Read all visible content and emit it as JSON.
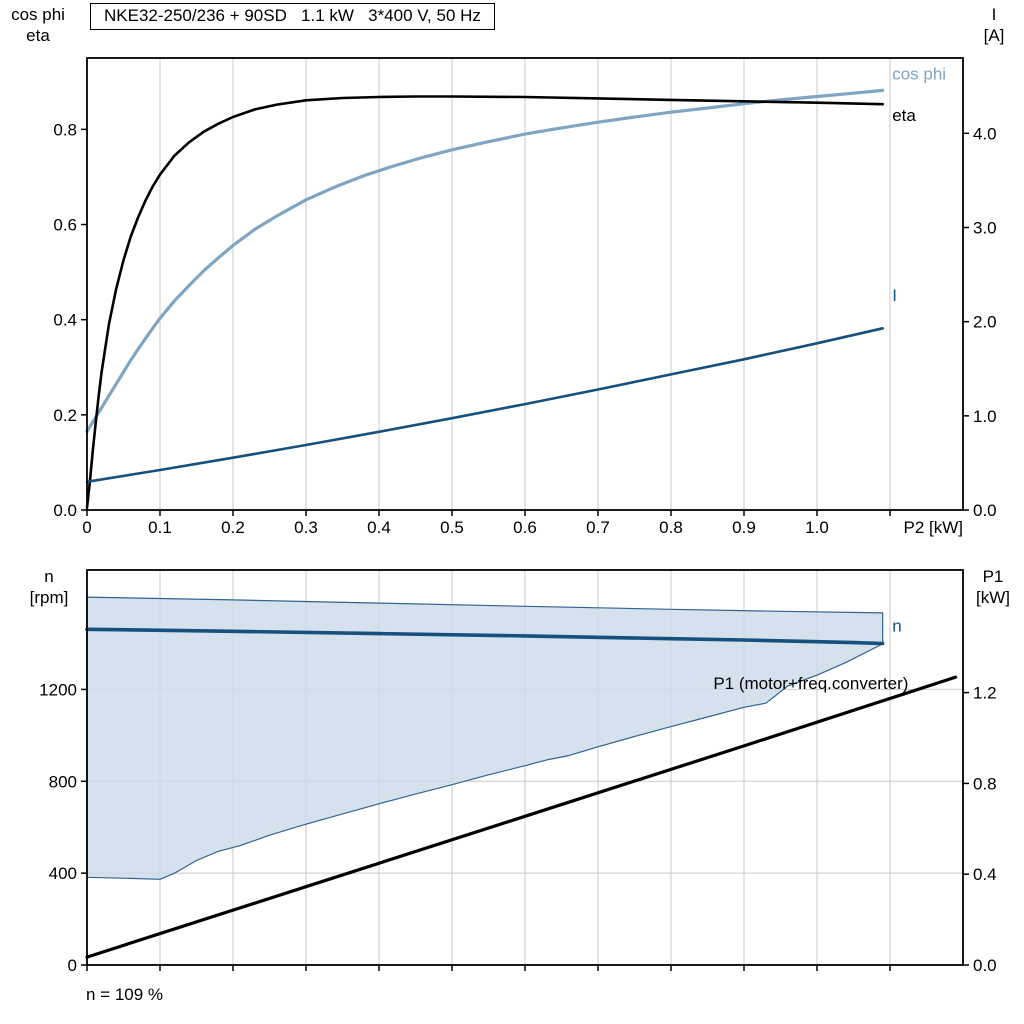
{
  "title_box": {
    "text": "NKE32-250/236 + 90SD   1.1 kW   3*400 V, 50 Hz"
  },
  "footer_note": "n = 109 %",
  "colors": {
    "cosphi": "#7FA5C3",
    "eta": "#000000",
    "blue": "#17507D",
    "p1": "#000000",
    "band_fill": "#CBDAE8",
    "band_stroke": "#33638F",
    "grid": "#C9C9C9",
    "axis": "#000000",
    "text": "#000000"
  },
  "chart_data": [
    {
      "id": "motor-curves",
      "type": "line",
      "title": "NKE32-250/236 + 90SD   1.1 kW   3*400 V, 50 Hz",
      "x_axis": {
        "label": "P2 [kW]",
        "min": 0,
        "max": 1.2,
        "grid": true,
        "ticks": [
          0,
          0.1,
          0.2,
          0.3,
          0.4,
          0.5,
          0.6,
          0.7,
          0.8,
          0.9,
          1.0,
          1.1
        ],
        "tick_labels": [
          "0",
          "0.1",
          "0.2",
          "0.3",
          "0.4",
          "0.5",
          "0.6",
          "0.7",
          "0.8",
          "0.9",
          "1.0",
          ""
        ]
      },
      "y_left": {
        "label_lines": [
          "cos phi",
          "eta"
        ],
        "min": 0,
        "max": 0.95,
        "grid": false,
        "ticks": [
          0,
          0.2,
          0.4,
          0.6,
          0.8
        ],
        "tick_labels": [
          "0.0",
          "0.2",
          "0.4",
          "0.6",
          "0.8"
        ]
      },
      "y_right": {
        "label_lines": [
          "I",
          "[A]"
        ],
        "min": 0,
        "max": 4.8,
        "ticks": [
          0,
          1,
          2,
          3,
          4
        ],
        "tick_labels": [
          "0.0",
          "1.0",
          "2.0",
          "3.0",
          "4.0"
        ]
      },
      "series": [
        {
          "id": "cos-phi",
          "name": "cos phi",
          "axis": "left",
          "color_key": "cosphi",
          "width": 3.2,
          "points": [
            [
              0,
              0.165
            ],
            [
              0.01,
              0.19
            ],
            [
              0.02,
              0.215
            ],
            [
              0.03,
              0.24
            ],
            [
              0.04,
              0.265
            ],
            [
              0.05,
              0.29
            ],
            [
              0.06,
              0.315
            ],
            [
              0.07,
              0.338
            ],
            [
              0.08,
              0.36
            ],
            [
              0.09,
              0.382
            ],
            [
              0.1,
              0.403
            ],
            [
              0.12,
              0.44
            ],
            [
              0.14,
              0.472
            ],
            [
              0.16,
              0.503
            ],
            [
              0.18,
              0.53
            ],
            [
              0.2,
              0.556
            ],
            [
              0.23,
              0.59
            ],
            [
              0.26,
              0.618
            ],
            [
              0.3,
              0.652
            ],
            [
              0.34,
              0.679
            ],
            [
              0.38,
              0.703
            ],
            [
              0.42,
              0.723
            ],
            [
              0.46,
              0.741
            ],
            [
              0.5,
              0.757
            ],
            [
              0.55,
              0.774
            ],
            [
              0.6,
              0.79
            ],
            [
              0.65,
              0.803
            ],
            [
              0.7,
              0.815
            ],
            [
              0.75,
              0.826
            ],
            [
              0.8,
              0.836
            ],
            [
              0.85,
              0.845
            ],
            [
              0.9,
              0.854
            ],
            [
              0.95,
              0.862
            ],
            [
              1.0,
              0.869
            ],
            [
              1.05,
              0.876
            ],
            [
              1.09,
              0.882
            ]
          ]
        },
        {
          "id": "eta",
          "name": "eta",
          "axis": "left",
          "color_key": "eta",
          "width": 2.6,
          "points": [
            [
              0,
              0.005
            ],
            [
              0.004,
              0.06
            ],
            [
              0.008,
              0.125
            ],
            [
              0.012,
              0.185
            ],
            [
              0.016,
              0.24
            ],
            [
              0.02,
              0.29
            ],
            [
              0.03,
              0.39
            ],
            [
              0.04,
              0.465
            ],
            [
              0.05,
              0.525
            ],
            [
              0.06,
              0.575
            ],
            [
              0.07,
              0.615
            ],
            [
              0.08,
              0.65
            ],
            [
              0.09,
              0.68
            ],
            [
              0.1,
              0.705
            ],
            [
              0.12,
              0.745
            ],
            [
              0.14,
              0.773
            ],
            [
              0.16,
              0.795
            ],
            [
              0.18,
              0.812
            ],
            [
              0.2,
              0.826
            ],
            [
              0.23,
              0.842
            ],
            [
              0.26,
              0.852
            ],
            [
              0.3,
              0.861
            ],
            [
              0.35,
              0.866
            ],
            [
              0.4,
              0.868
            ],
            [
              0.45,
              0.869
            ],
            [
              0.5,
              0.869
            ],
            [
              0.6,
              0.868
            ],
            [
              0.7,
              0.865
            ],
            [
              0.8,
              0.862
            ],
            [
              0.9,
              0.859
            ],
            [
              1.0,
              0.856
            ],
            [
              1.09,
              0.853
            ]
          ]
        },
        {
          "id": "current",
          "name": "I",
          "axis": "right",
          "color_key": "blue",
          "width": 2.6,
          "points": [
            [
              0,
              0.3
            ],
            [
              0.1,
              0.425
            ],
            [
              0.2,
              0.555
            ],
            [
              0.3,
              0.69
            ],
            [
              0.4,
              0.83
            ],
            [
              0.5,
              0.975
            ],
            [
              0.6,
              1.125
            ],
            [
              0.7,
              1.28
            ],
            [
              0.8,
              1.44
            ],
            [
              0.9,
              1.6
            ],
            [
              1.0,
              1.77
            ],
            [
              1.09,
              1.93
            ]
          ]
        }
      ],
      "labels": [
        {
          "id": "cos-phi",
          "text": "cos phi",
          "x": 1.103,
          "y": 0.905,
          "axis": "left",
          "color_key": "cosphi",
          "anchor": "start"
        },
        {
          "id": "eta",
          "text": "eta",
          "x": 1.103,
          "y": 0.818,
          "axis": "left",
          "color_key": "eta",
          "anchor": "start"
        },
        {
          "id": "current",
          "text": "I",
          "x": 1.103,
          "y": 2.22,
          "axis": "right",
          "color_key": "blue",
          "anchor": "start"
        }
      ]
    },
    {
      "id": "speed-power",
      "type": "line",
      "x_axis": {
        "label": "",
        "min": 0,
        "max": 1.2,
        "grid": true,
        "ticks": [
          0,
          0.1,
          0.2,
          0.3,
          0.4,
          0.5,
          0.6,
          0.7,
          0.8,
          0.9,
          1.0,
          1.1
        ],
        "tick_labels": []
      },
      "y_left": {
        "label_lines": [
          "n",
          "[rpm]"
        ],
        "min": 0,
        "max": 1720,
        "grid": true,
        "ticks": [
          0,
          400,
          800,
          1200
        ],
        "tick_labels": [
          "0",
          "400",
          "800",
          "1200"
        ]
      },
      "y_right": {
        "label_lines": [
          "P1",
          "[kW]"
        ],
        "min": 0,
        "max": 1.74,
        "ticks": [
          0,
          0.4,
          0.8,
          1.2
        ],
        "tick_labels": [
          "0.0",
          "0.4",
          "0.8",
          "1.2"
        ]
      },
      "band": {
        "name": "speed-control-range-band",
        "fill_key": "band_fill",
        "stroke_key": "band_stroke",
        "opacity": 0.8,
        "points": [
          [
            0,
            1602
          ],
          [
            0.2,
            1590
          ],
          [
            0.4,
            1576
          ],
          [
            0.6,
            1562
          ],
          [
            0.8,
            1549
          ],
          [
            0.95,
            1540
          ],
          [
            1.09,
            1533
          ],
          [
            1.09,
            1398
          ],
          [
            1.04,
            1318
          ],
          [
            1.0,
            1262
          ],
          [
            0.96,
            1215
          ],
          [
            0.93,
            1140
          ],
          [
            0.9,
            1122
          ],
          [
            0.85,
            1080
          ],
          [
            0.8,
            1038
          ],
          [
            0.75,
            995
          ],
          [
            0.7,
            950
          ],
          [
            0.66,
            912
          ],
          [
            0.63,
            893
          ],
          [
            0.6,
            868
          ],
          [
            0.55,
            828
          ],
          [
            0.5,
            785
          ],
          [
            0.45,
            744
          ],
          [
            0.4,
            702
          ],
          [
            0.35,
            658
          ],
          [
            0.3,
            613
          ],
          [
            0.25,
            565
          ],
          [
            0.21,
            520
          ],
          [
            0.18,
            495
          ],
          [
            0.15,
            455
          ],
          [
            0.12,
            400
          ],
          [
            0.1,
            373
          ],
          [
            0.06,
            377
          ],
          [
            0,
            382
          ]
        ]
      },
      "series": [
        {
          "id": "speed",
          "name": "n",
          "axis": "left",
          "color_key": "blue",
          "width": 3.6,
          "points": [
            [
              0,
              1462
            ],
            [
              0.2,
              1453
            ],
            [
              0.4,
              1443
            ],
            [
              0.6,
              1433
            ],
            [
              0.8,
              1421
            ],
            [
              0.9,
              1415
            ],
            [
              1.0,
              1408
            ],
            [
              1.05,
              1404
            ],
            [
              1.09,
              1400
            ]
          ]
        },
        {
          "id": "p1",
          "name": "P1 (motor+freq.converter)",
          "axis": "right",
          "color_key": "p1",
          "width": 3.2,
          "points": [
            [
              0,
              0.035
            ],
            [
              0.3,
              0.345
            ],
            [
              0.6,
              0.655
            ],
            [
              0.9,
              0.965
            ],
            [
              1.19,
              1.268
            ]
          ]
        }
      ],
      "labels": [
        {
          "id": "speed",
          "text": "n",
          "x": 1.103,
          "y": 1452,
          "axis": "left",
          "color_key": "blue",
          "anchor": "start"
        },
        {
          "id": "p1",
          "text": "P1 (motor+freq.converter)",
          "x": 0.858,
          "y": 1.215,
          "axis": "right",
          "color_key": "p1",
          "anchor": "start"
        }
      ]
    }
  ]
}
